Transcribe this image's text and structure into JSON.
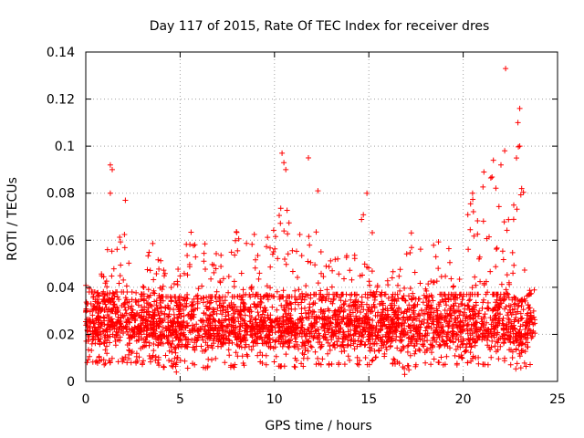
{
  "chart_data": {
    "type": "scatter",
    "title": "Day 117 of 2015, Rate Of TEC Index for receiver dres",
    "xlabel": "GPS time / hours",
    "ylabel": "ROTI / TECUs",
    "xlim": [
      0,
      25
    ],
    "ylim": [
      0,
      0.14
    ],
    "xticks": [
      0,
      5,
      10,
      15,
      20,
      25
    ],
    "yticks": [
      0,
      0.02,
      0.04,
      0.06,
      0.08,
      0.1,
      0.12,
      0.14
    ],
    "xtick_labels": [
      "0",
      "5",
      "10",
      "15",
      "20",
      "25"
    ],
    "ytick_labels": [
      "0",
      "0.02",
      "0.04",
      "0.06",
      "0.08",
      "0.1",
      "0.12",
      "0.14"
    ],
    "grid": true,
    "marker": "+",
    "color": "#ff0000",
    "data_range": [
      0,
      23.8
    ],
    "note": "Dense scatter of ROTI samples; envelope below lists the approximate upper extent per hour, with notable outliers listed separately.",
    "envelope": {
      "hour": [
        0,
        0.5,
        1,
        1.5,
        2,
        2.5,
        3,
        3.5,
        4,
        4.5,
        5,
        5.5,
        6,
        6.5,
        7,
        7.5,
        8,
        8.5,
        9,
        9.5,
        10,
        10.5,
        11,
        11.5,
        12,
        12.5,
        13,
        13.5,
        14,
        14.5,
        15,
        15.5,
        16,
        16.5,
        17,
        17.5,
        18,
        18.5,
        19,
        19.5,
        20,
        20.5,
        21,
        21.5,
        22,
        22.5,
        23,
        23.5,
        23.8
      ],
      "max_roti": [
        0.05,
        0.035,
        0.055,
        0.06,
        0.07,
        0.035,
        0.04,
        0.065,
        0.055,
        0.05,
        0.06,
        0.068,
        0.055,
        0.065,
        0.06,
        0.05,
        0.065,
        0.06,
        0.063,
        0.06,
        0.065,
        0.09,
        0.06,
        0.075,
        0.08,
        0.06,
        0.07,
        0.06,
        0.065,
        0.07,
        0.078,
        0.045,
        0.05,
        0.045,
        0.07,
        0.06,
        0.055,
        0.065,
        0.06,
        0.055,
        0.065,
        0.08,
        0.085,
        0.09,
        0.095,
        0.07,
        0.11,
        0.06,
        0.045
      ],
      "min_roti": [
        0.008,
        0.008,
        0.007,
        0.008,
        0.008,
        0.008,
        0.007,
        0.008,
        0.006,
        0.006,
        0.006,
        0.005,
        0.005,
        0.006,
        0.006,
        0.006,
        0.006,
        0.007,
        0.007,
        0.007,
        0.006,
        0.006,
        0.006,
        0.006,
        0.007,
        0.007,
        0.007,
        0.007,
        0.007,
        0.007,
        0.007,
        0.007,
        0.007,
        0.007,
        0.004,
        0.006,
        0.006,
        0.007,
        0.007,
        0.007,
        0.007,
        0.007,
        0.007,
        0.007,
        0.007,
        0.007,
        0.004,
        0.007,
        0.008
      ]
    },
    "outliers": [
      {
        "x": 1.3,
        "y": 0.092
      },
      {
        "x": 1.4,
        "y": 0.09
      },
      {
        "x": 1.3,
        "y": 0.08
      },
      {
        "x": 2.1,
        "y": 0.077
      },
      {
        "x": 10.4,
        "y": 0.097
      },
      {
        "x": 10.5,
        "y": 0.093
      },
      {
        "x": 10.6,
        "y": 0.09
      },
      {
        "x": 11.8,
        "y": 0.095
      },
      {
        "x": 12.3,
        "y": 0.081
      },
      {
        "x": 14.9,
        "y": 0.08
      },
      {
        "x": 20.5,
        "y": 0.08
      },
      {
        "x": 21.1,
        "y": 0.089
      },
      {
        "x": 21.6,
        "y": 0.094
      },
      {
        "x": 22.0,
        "y": 0.092
      },
      {
        "x": 22.2,
        "y": 0.098
      },
      {
        "x": 22.25,
        "y": 0.133
      },
      {
        "x": 22.9,
        "y": 0.11
      },
      {
        "x": 23.0,
        "y": 0.116
      },
      {
        "x": 23.0,
        "y": 0.1
      },
      {
        "x": 23.1,
        "y": 0.082
      },
      {
        "x": 16.9,
        "y": 0.003
      },
      {
        "x": 4.8,
        "y": 0.004
      }
    ]
  }
}
